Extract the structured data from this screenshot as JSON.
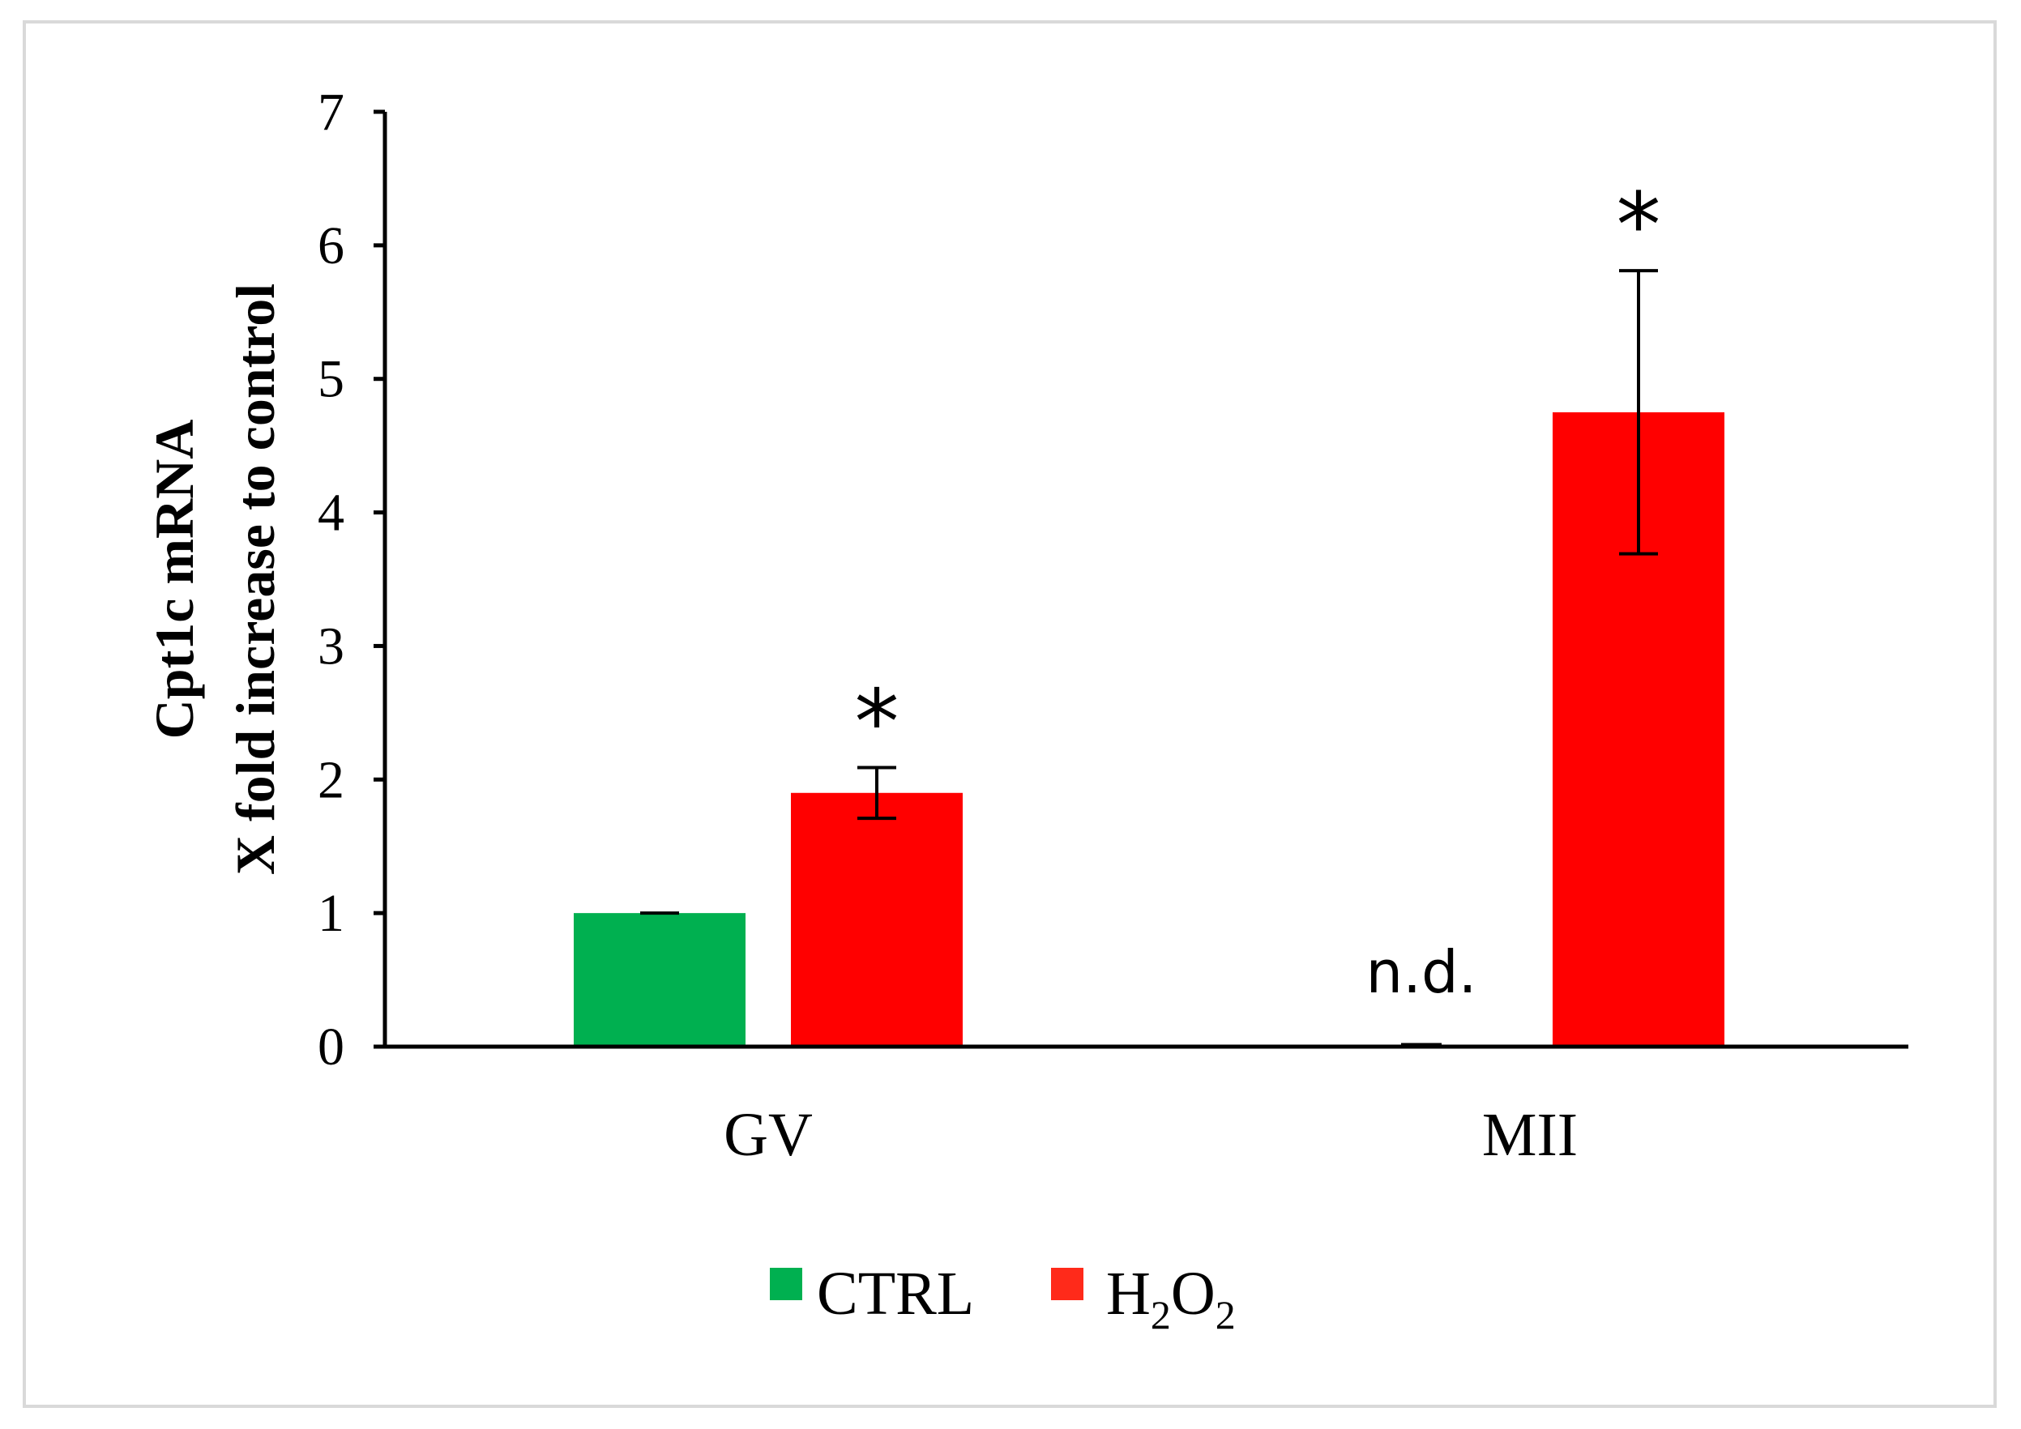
{
  "chart_data": {
    "type": "bar",
    "title": "",
    "ylabel_line1": "Cpt1c mRNA",
    "ylabel_line2": "X fold increase to control",
    "xlabel": "",
    "categories": [
      "GV",
      "MII"
    ],
    "ylim": [
      0,
      7
    ],
    "yticks": [
      "0",
      "1",
      "2",
      "3",
      "4",
      "5",
      "6",
      "7"
    ],
    "series": [
      {
        "name": "CTRL",
        "color": "#00b050",
        "values": [
          1.0,
          0.0
        ],
        "errors": [
          0.0,
          0.0
        ]
      },
      {
        "name": "H2O2",
        "color": "#ff0000",
        "values": [
          1.9,
          4.75
        ],
        "errors": [
          0.19,
          1.06
        ]
      }
    ],
    "annotations": [
      {
        "text": "*",
        "category": "GV",
        "series": "H2O2"
      },
      {
        "text": "*",
        "category": "MII",
        "series": "H2O2"
      },
      {
        "text": "n.d.",
        "category": "MII",
        "series": "CTRL"
      }
    ],
    "legend": {
      "position": "bottom-center",
      "entries": [
        {
          "label": "CTRL",
          "color": "#00b050"
        },
        {
          "label_base": "H",
          "sub1": "2",
          "label_mid": "O",
          "sub2": "2",
          "color": "#ff2a1a"
        }
      ]
    },
    "grid": false
  }
}
